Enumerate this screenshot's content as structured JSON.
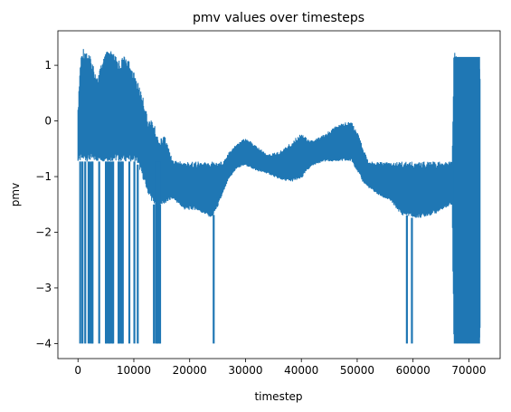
{
  "chart_data": {
    "type": "line",
    "title": "pmv values over timesteps",
    "xlabel": "timestep",
    "ylabel": "pmv",
    "xlim": [
      -3600,
      75600
    ],
    "ylim": [
      -4.27,
      1.62
    ],
    "xticks": [
      0,
      10000,
      20000,
      30000,
      40000,
      50000,
      60000,
      70000
    ],
    "xtick_labels": [
      "0",
      "10000",
      "20000",
      "30000",
      "40000",
      "50000",
      "60000",
      "70000"
    ],
    "yticks": [
      1,
      0,
      -1,
      -2,
      -3,
      -4
    ],
    "ytick_labels": [
      "1",
      "0",
      "−1",
      "−2",
      "−3",
      "−4"
    ],
    "grid": false,
    "line_color": "#1f77b4",
    "series": [
      {
        "name": "",
        "envelope_x": [
          0,
          400,
          800,
          1500,
          2500,
          3500,
          4500,
          5500,
          6500,
          7500,
          8500,
          9500,
          10500,
          11500,
          12500,
          13500,
          14500,
          15500,
          17000,
          19000,
          21000,
          23000,
          24000,
          25000,
          26000,
          27000,
          28500,
          30000,
          32000,
          34000,
          36000,
          38000,
          40000,
          41000,
          42000,
          44000,
          46000,
          48000,
          49000,
          50000,
          51000,
          52000,
          54000,
          56000,
          58000,
          59000,
          60000,
          61000,
          63000,
          64500,
          66000,
          67000,
          67300,
          68000,
          70000,
          72000
        ],
        "envelope_high": [
          0.2,
          1.05,
          1.35,
          1.3,
          1.1,
          0.8,
          1.15,
          1.3,
          1.2,
          1.1,
          1.2,
          1.0,
          0.75,
          0.5,
          0.05,
          0.0,
          -0.35,
          -0.25,
          -0.7,
          -0.73,
          -0.73,
          -0.73,
          -0.73,
          -0.73,
          -0.72,
          -0.55,
          -0.4,
          -0.3,
          -0.45,
          -0.6,
          -0.55,
          -0.4,
          -0.2,
          -0.3,
          -0.35,
          -0.25,
          -0.1,
          0.0,
          0.0,
          -0.2,
          -0.45,
          -0.73,
          -0.73,
          -0.73,
          -0.73,
          -0.73,
          -0.73,
          -0.73,
          -0.73,
          -0.73,
          -0.73,
          -0.73,
          1.27,
          1.15,
          1.15,
          1.15
        ],
        "envelope_low": [
          -0.73,
          -0.73,
          -0.73,
          -0.73,
          -0.73,
          -0.73,
          -0.73,
          -0.73,
          -0.73,
          -0.73,
          -0.73,
          -0.73,
          -0.73,
          -1.0,
          -1.3,
          -1.5,
          -1.5,
          -1.5,
          -1.4,
          -1.6,
          -1.6,
          -1.7,
          -1.75,
          -1.55,
          -1.3,
          -1.05,
          -0.85,
          -0.8,
          -0.9,
          -0.95,
          -1.05,
          -1.1,
          -1.05,
          -0.9,
          -0.8,
          -0.73,
          -0.73,
          -0.73,
          -0.73,
          -0.9,
          -1.1,
          -1.2,
          -1.35,
          -1.45,
          -1.7,
          -1.7,
          -1.75,
          -1.75,
          -1.7,
          -1.65,
          -1.55,
          -1.5,
          -4.0,
          -4.0,
          -4.0,
          -4.0
        ],
        "drops_to_min_x": [
          400,
          800,
          1300,
          1900,
          2600,
          3800,
          5000,
          5600,
          6300,
          7300,
          7900,
          9200,
          10100,
          10700,
          13600,
          14200,
          14700,
          24300,
          58900,
          59800,
          68000,
          70000,
          72000
        ],
        "min_value": -4.0
      }
    ]
  }
}
